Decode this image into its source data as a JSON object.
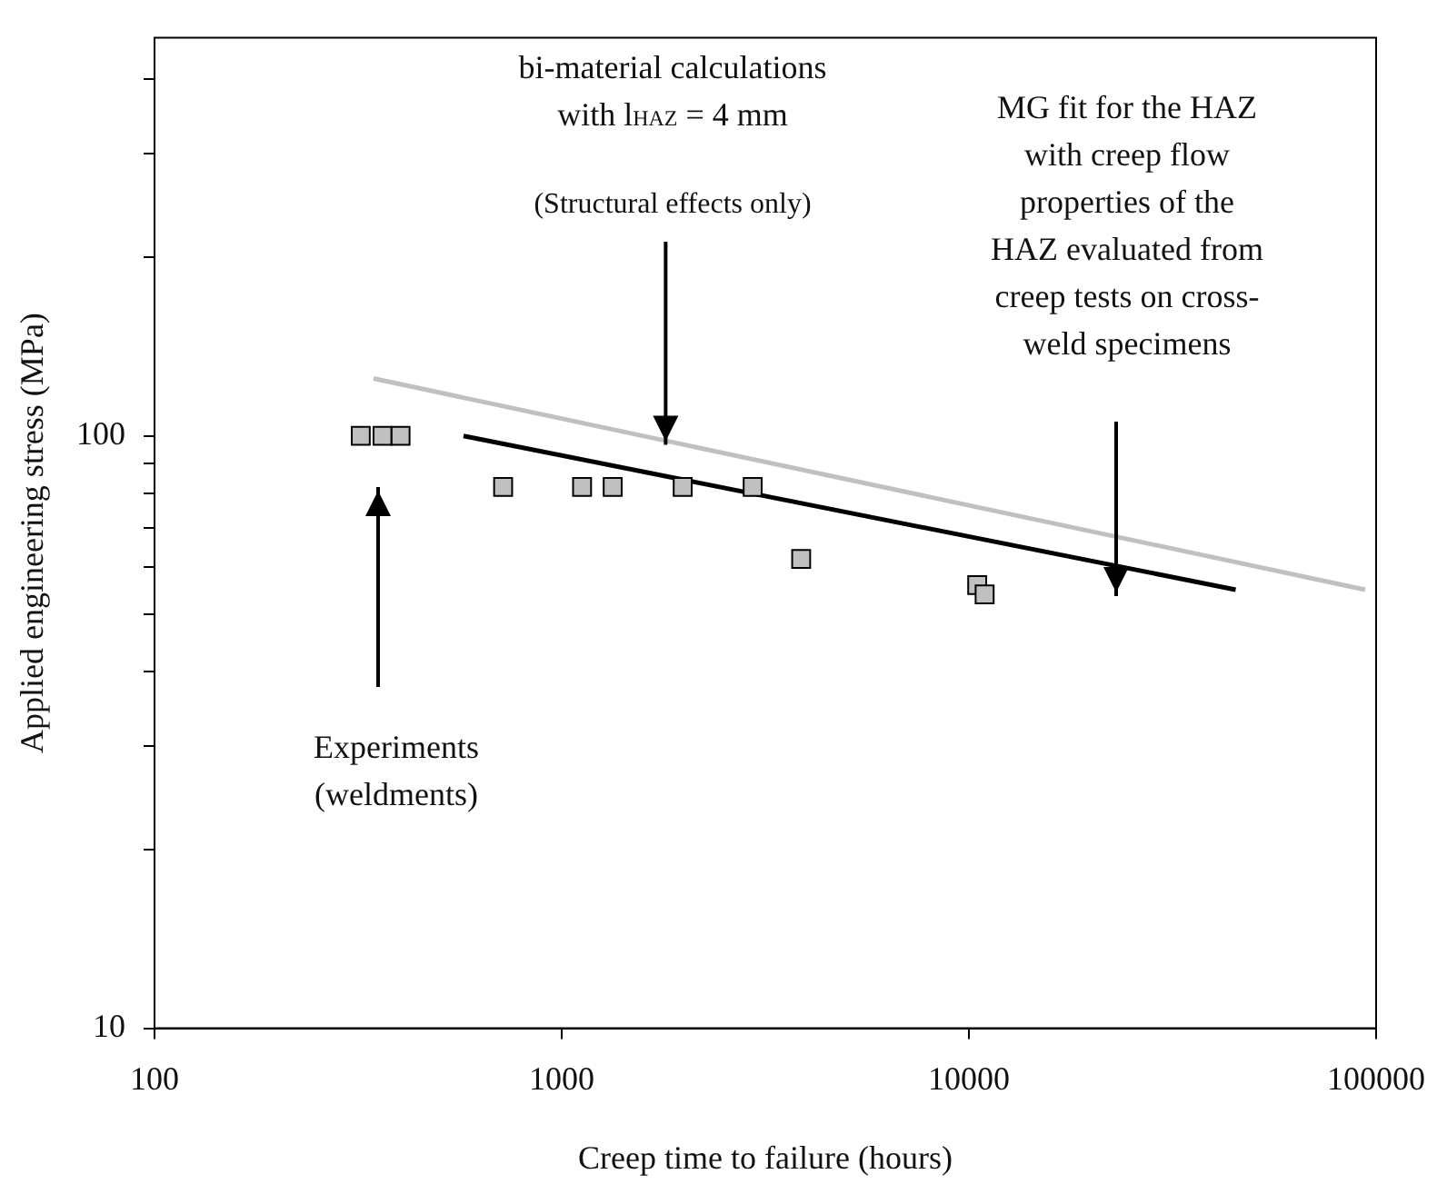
{
  "chart_data": {
    "type": "scatter",
    "xlabel": "Creep time to failure (hours)",
    "ylabel": "Applied engineering stress (MPa)",
    "log": "xy",
    "grid": false,
    "legend": false,
    "xlim": [
      100,
      100000
    ],
    "xticks": [
      100,
      1000,
      10000,
      100000
    ],
    "ylim": [
      10,
      470
    ],
    "yticks": [
      10,
      {
        "value": 20,
        "label": null
      },
      {
        "value": 30,
        "label": null
      },
      {
        "value": 40,
        "label": null
      },
      {
        "value": 50,
        "label": null
      },
      {
        "value": 60,
        "label": null
      },
      {
        "value": 70,
        "label": null
      },
      {
        "value": 80,
        "label": null
      },
      {
        "value": 90,
        "label": null
      },
      100,
      {
        "value": 200,
        "label": null
      },
      {
        "value": 300,
        "label": null
      },
      {
        "value": 400,
        "label": null
      }
    ],
    "series": [
      {
        "type": "line",
        "color": "#c0c0c0",
        "marker": "none",
        "line_style": "solid",
        "x": [
          345,
          94000
        ],
        "values": [
          125,
          55
        ]
      },
      {
        "type": "line",
        "color": "#000000",
        "marker": "none",
        "line_style": "solid",
        "x": [
          574,
          45200
        ],
        "values": [
          100,
          55
        ]
      },
      {
        "color": "#c0c0c0",
        "marker": "square",
        "x": [
          321,
          363,
          402,
          718,
          1122,
          1334,
          1982,
          2944,
          3873,
          10480,
          10930
        ],
        "values": [
          100,
          100,
          100,
          82,
          82,
          82,
          82,
          82,
          62,
          56,
          54
        ]
      }
    ],
    "annotations": [
      "bi-material calculations\nwith l$_{HAZ}$ = 4 mm",
      {
        "text": "(Structural effects only)",
        "x": 1800,
        "y": 98
      },
      "MG fit for the HAZ\nwith creep flow\nproperties of the\nHAZ evaluated from\ncreep tests on cross-\nweld specimens",
      "Experiments\n(weldments)"
    ]
  }
}
